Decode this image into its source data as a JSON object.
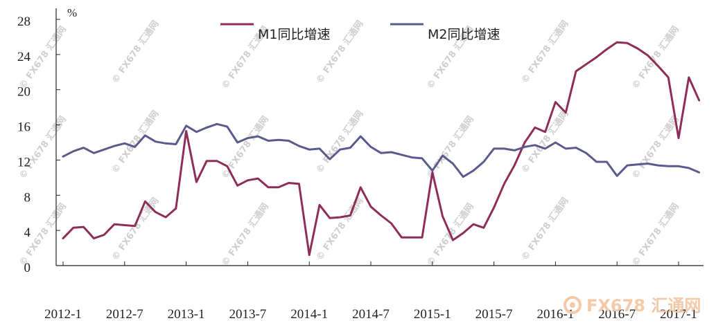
{
  "watermark": "© FX678 汇通网",
  "logo": {
    "text": "FX678 汇通网",
    "color": "#f3c9a8"
  },
  "chart_data": {
    "type": "line",
    "unit": "%",
    "ylim": [
      0,
      28
    ],
    "yticks": [
      0,
      4,
      8,
      12,
      16,
      20,
      24,
      28
    ],
    "xticks": [
      "2012-1",
      "2012-7",
      "2013-1",
      "2013-7",
      "2014-1",
      "2014-7",
      "2015-1",
      "2015-7",
      "2016-1",
      "2016-7",
      "2017-1"
    ],
    "x": [
      "2012-1",
      "2012-2",
      "2012-3",
      "2012-4",
      "2012-5",
      "2012-6",
      "2012-7",
      "2012-8",
      "2012-9",
      "2012-10",
      "2012-11",
      "2012-12",
      "2013-1",
      "2013-2",
      "2013-3",
      "2013-4",
      "2013-5",
      "2013-6",
      "2013-7",
      "2013-8",
      "2013-9",
      "2013-10",
      "2013-11",
      "2013-12",
      "2014-1",
      "2014-2",
      "2014-3",
      "2014-4",
      "2014-5",
      "2014-6",
      "2014-7",
      "2014-8",
      "2014-9",
      "2014-10",
      "2014-11",
      "2014-12",
      "2015-1",
      "2015-2",
      "2015-3",
      "2015-4",
      "2015-5",
      "2015-6",
      "2015-7",
      "2015-8",
      "2015-9",
      "2015-10",
      "2015-11",
      "2015-12",
      "2016-1",
      "2016-2",
      "2016-3",
      "2016-4",
      "2016-5",
      "2016-6",
      "2016-7",
      "2016-8",
      "2016-9",
      "2016-10",
      "2016-11",
      "2016-12",
      "2017-1",
      "2017-2",
      "2017-3"
    ],
    "series": [
      {
        "name": "M1同比增速",
        "color": "#8e2d59",
        "values": [
          3.1,
          4.3,
          4.4,
          3.1,
          3.5,
          4.7,
          4.6,
          4.5,
          7.3,
          6.1,
          5.5,
          6.5,
          15.3,
          9.5,
          11.9,
          11.9,
          11.3,
          9.1,
          9.7,
          9.9,
          8.9,
          8.9,
          9.4,
          9.3,
          1.2,
          6.9,
          5.4,
          5.5,
          5.7,
          8.9,
          6.7,
          5.7,
          4.8,
          3.2,
          3.2,
          3.2,
          10.6,
          5.6,
          2.9,
          3.7,
          4.7,
          4.3,
          6.6,
          9.3,
          11.4,
          14.0,
          15.7,
          15.2,
          18.6,
          17.4,
          22.1,
          22.9,
          23.7,
          24.6,
          25.4,
          25.3,
          24.7,
          23.9,
          22.7,
          21.4,
          14.5,
          21.4,
          18.8
        ]
      },
      {
        "name": "M2同比增速",
        "color": "#595b8c",
        "values": [
          12.4,
          13.0,
          13.4,
          12.8,
          13.2,
          13.6,
          13.9,
          13.5,
          14.8,
          14.1,
          13.9,
          13.8,
          15.9,
          15.2,
          15.7,
          16.1,
          15.8,
          14.0,
          14.5,
          14.7,
          14.2,
          14.3,
          14.2,
          13.6,
          13.2,
          13.3,
          12.1,
          13.2,
          13.4,
          14.7,
          13.5,
          12.8,
          12.9,
          12.6,
          12.3,
          12.2,
          10.8,
          12.5,
          11.6,
          10.1,
          10.8,
          11.8,
          13.3,
          13.3,
          13.1,
          13.5,
          13.7,
          13.3,
          14.0,
          13.3,
          13.4,
          12.8,
          11.8,
          11.8,
          10.2,
          11.4,
          11.5,
          11.6,
          11.4,
          11.3,
          11.3,
          11.1,
          10.6
        ]
      }
    ],
    "legend": "top-center",
    "grid": false
  }
}
